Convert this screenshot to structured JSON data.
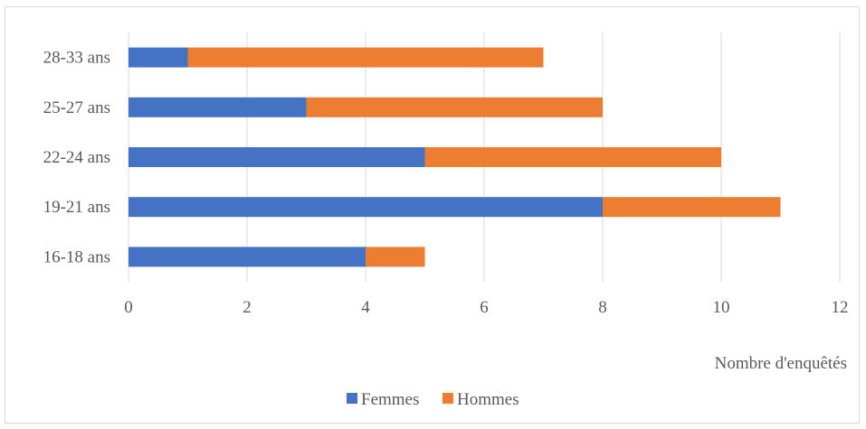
{
  "chart_data": {
    "type": "bar",
    "orientation": "horizontal",
    "stacked": true,
    "categories": [
      "16-18 ans",
      "19-21 ans",
      "22-24 ans",
      "25-27 ans",
      "28-33 ans"
    ],
    "series": [
      {
        "name": "Femmes",
        "color": "#4472c4",
        "values": [
          4,
          8,
          5,
          3,
          1
        ]
      },
      {
        "name": "Hommes",
        "color": "#ed7d31",
        "values": [
          1,
          3,
          5,
          5,
          6
        ]
      }
    ],
    "xlabel": "Nombre d'enquêtés",
    "ylabel": "",
    "xlim": [
      0,
      12
    ],
    "xticks": [
      0,
      2,
      4,
      6,
      8,
      10,
      12
    ],
    "grid": true,
    "legend_position": "bottom"
  }
}
